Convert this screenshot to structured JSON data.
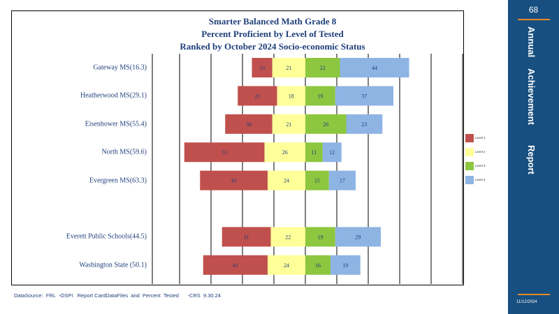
{
  "chart_data": {
    "type": "bar",
    "orientation": "horizontal-diverging",
    "title_lines": [
      "Smarter Balanced Math Grade 8",
      "Percent Proficient by Level of Tested",
      "Ranked by October 2024 Socio-economic  Status"
    ],
    "categories": [
      "Gateway MS(16.3)",
      "Heatherwood  MS(29.1)",
      "Eisenhower MS(55.4)",
      "North MS(59.6)",
      "Evergreen  MS(63.3)",
      "",
      "Everett  Public Schools(44.5)",
      "Washington State  (50.1)"
    ],
    "series": [
      {
        "name": "Level 1",
        "color": "#c0504d",
        "values": [
          13,
          25,
          30,
          51,
          43,
          null,
          31,
          41
        ]
      },
      {
        "name": "Level 2",
        "color": "#ffff99",
        "values": [
          21,
          18,
          21,
          26,
          24,
          null,
          22,
          24
        ]
      },
      {
        "name": "Level 3",
        "color": "#8dc63f",
        "values": [
          22,
          19,
          26,
          11,
          15,
          null,
          19,
          16
        ]
      },
      {
        "name": "Level 4",
        "color": "#8eb4e3",
        "values": [
          44,
          37,
          23,
          12,
          17,
          null,
          29,
          19
        ]
      }
    ],
    "legend_position": "right",
    "grid": true
  },
  "footer": "DataSource:  FRL  -OSPI   Report CardDataFiles  and  Percent  Tested      -CRS  9.30.24",
  "side_panel": {
    "page_number": "68",
    "words": [
      "Annual",
      "Achievement",
      "Report"
    ],
    "date": "11/12/2024",
    "color": "#174f80",
    "accent": "#e88a2a"
  }
}
